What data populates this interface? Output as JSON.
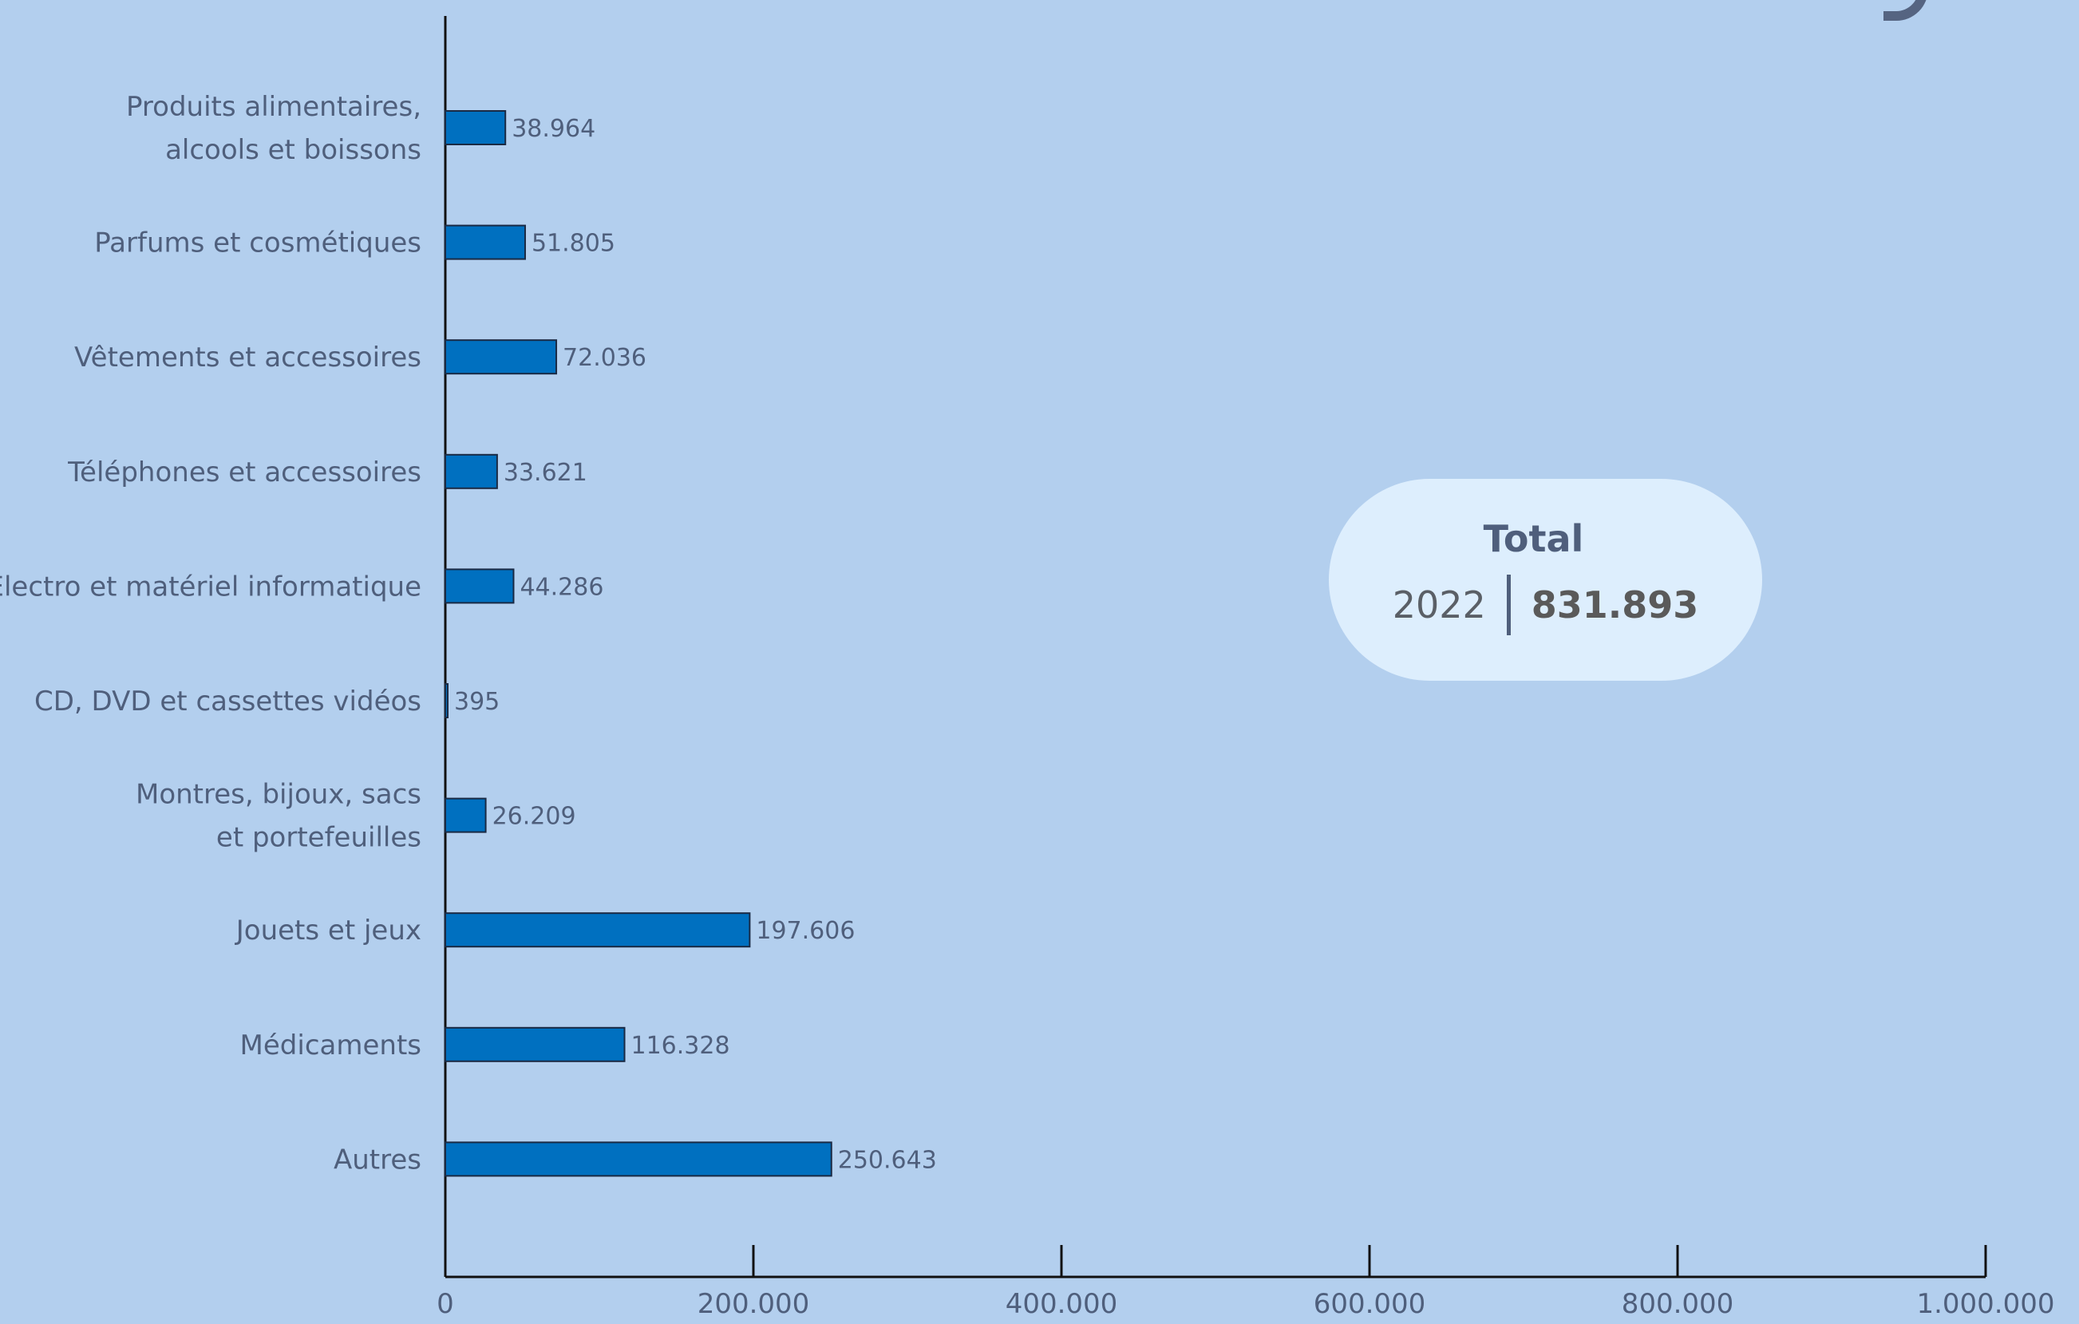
{
  "chart_data": {
    "type": "bar",
    "orientation": "horizontal",
    "categories": [
      "Produits alimentaires,\nalcools et boissons",
      "Parfums et cosmétiques",
      "Vêtements et accessoires",
      "Téléphones et accessoires",
      "Électro et matériel informatique",
      "CD, DVD et cassettes vidéos",
      "Montres, bijoux, sacs\net portefeuilles",
      "Jouets et jeux",
      "Médicaments",
      "Autres"
    ],
    "values": [
      38964,
      51805,
      72036,
      33621,
      44286,
      395,
      26209,
      197606,
      116328,
      250643
    ],
    "value_labels": [
      "38.964",
      "51.805",
      "72.036",
      "33.621",
      "44.286",
      "395",
      "26.209",
      "197.606",
      "116.328",
      "250.643"
    ],
    "xlim": [
      0,
      1000000
    ],
    "x_ticks": [
      0,
      200000,
      400000,
      600000,
      800000,
      1000000
    ],
    "x_tick_labels": [
      "0",
      "200.000",
      "400.000",
      "600.000",
      "800.000",
      "1.000.000"
    ],
    "bar_color": "#0070c0",
    "grid": false
  },
  "total": {
    "title": "Total",
    "year": "2022",
    "value": "831.893"
  },
  "colors": {
    "background": "#b3cfee",
    "pill": "#ddeefd",
    "text": "#4f5f7c"
  }
}
